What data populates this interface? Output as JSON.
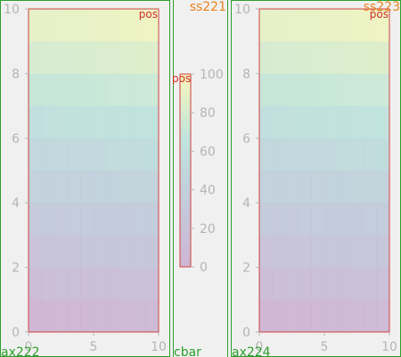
{
  "colors": {
    "cmap": [
      "#caaed0",
      "#bcc6d8",
      "#b8e2da",
      "#f7f7b6"
    ],
    "spine": "#d04040",
    "tick": "#b5b5b5",
    "pos_label": "#d0302a",
    "subplotspec_label": "#e8841c",
    "axes_label": "#2ca02c",
    "background": "#f0f0f0"
  },
  "chart_data": [
    {
      "type": "heatmap",
      "axes_name": "ax222",
      "pos_label": "pos",
      "xlim": [
        0,
        10
      ],
      "ylim": [
        0,
        10
      ],
      "xticks": [
        0,
        5,
        10
      ],
      "yticks": [
        0,
        2,
        4,
        6,
        8,
        10
      ],
      "rows": [
        [
          0,
          0.5,
          1,
          1.5,
          2,
          2.5,
          3,
          3.5,
          4,
          4.5
        ],
        [
          10,
          10.5,
          11,
          11.5,
          12,
          12.5,
          13,
          13.5,
          14,
          14.5
        ],
        [
          20,
          20.5,
          21,
          21.5,
          22,
          22.5,
          23,
          23.5,
          24,
          24.5
        ],
        [
          30,
          30.5,
          31,
          31.5,
          32,
          32.5,
          33,
          33.5,
          34,
          34.5
        ],
        [
          40,
          40.5,
          41,
          41.5,
          42,
          42.5,
          43,
          43.5,
          44,
          44.5
        ],
        [
          50,
          50.5,
          51,
          51.5,
          52,
          52.5,
          53,
          53.5,
          54,
          54.5
        ],
        [
          60,
          60.5,
          61,
          61.5,
          62,
          62.5,
          63,
          63.5,
          64,
          64.5
        ],
        [
          70,
          70.5,
          71,
          71.5,
          72,
          72.5,
          73,
          73.5,
          74,
          74.5
        ],
        [
          80,
          80.5,
          81,
          81.5,
          82,
          82.5,
          83,
          83.5,
          84,
          84.5
        ],
        [
          90,
          90.5,
          91,
          91.5,
          92,
          92.5,
          93,
          93.5,
          94,
          94.5
        ]
      ],
      "vmin": 0,
      "vmax": 100
    },
    {
      "type": "colorbar",
      "axes_name": "cbar",
      "subplotspec_label": "ss221",
      "pos_label": "pos",
      "vmin": 0,
      "vmax": 100,
      "ticks": [
        0,
        20,
        40,
        60,
        80,
        100
      ]
    },
    {
      "type": "heatmap",
      "axes_name": "ax224",
      "subplotspec_label": "ss223",
      "pos_label": "pos",
      "xlim": [
        0,
        10
      ],
      "ylim": [
        0,
        10
      ],
      "xticks": [
        0,
        5,
        10
      ],
      "yticks": [
        0,
        2,
        4,
        6,
        8,
        10
      ],
      "rows": [
        [
          0,
          0.5,
          1,
          1.5,
          2,
          2.5,
          3,
          3.5,
          4,
          4.5
        ],
        [
          10,
          10.5,
          11,
          11.5,
          12,
          12.5,
          13,
          13.5,
          14,
          14.5
        ],
        [
          20,
          20.5,
          21,
          21.5,
          22,
          22.5,
          23,
          23.5,
          24,
          24.5
        ],
        [
          30,
          30.5,
          31,
          31.5,
          32,
          32.5,
          33,
          33.5,
          34,
          34.5
        ],
        [
          40,
          40.5,
          41,
          41.5,
          42,
          42.5,
          43,
          43.5,
          44,
          44.5
        ],
        [
          50,
          50.5,
          51,
          51.5,
          52,
          52.5,
          53,
          53.5,
          54,
          54.5
        ],
        [
          60,
          60.5,
          61,
          61.5,
          62,
          62.5,
          63,
          63.5,
          64,
          64.5
        ],
        [
          70,
          70.5,
          71,
          71.5,
          72,
          72.5,
          73,
          73.5,
          74,
          74.5
        ],
        [
          80,
          80.5,
          81,
          81.5,
          82,
          82.5,
          83,
          83.5,
          84,
          84.5
        ],
        [
          90,
          90.5,
          91,
          91.5,
          92,
          92.5,
          93,
          93.5,
          94,
          94.5
        ]
      ],
      "vmin": 0,
      "vmax": 100
    }
  ]
}
